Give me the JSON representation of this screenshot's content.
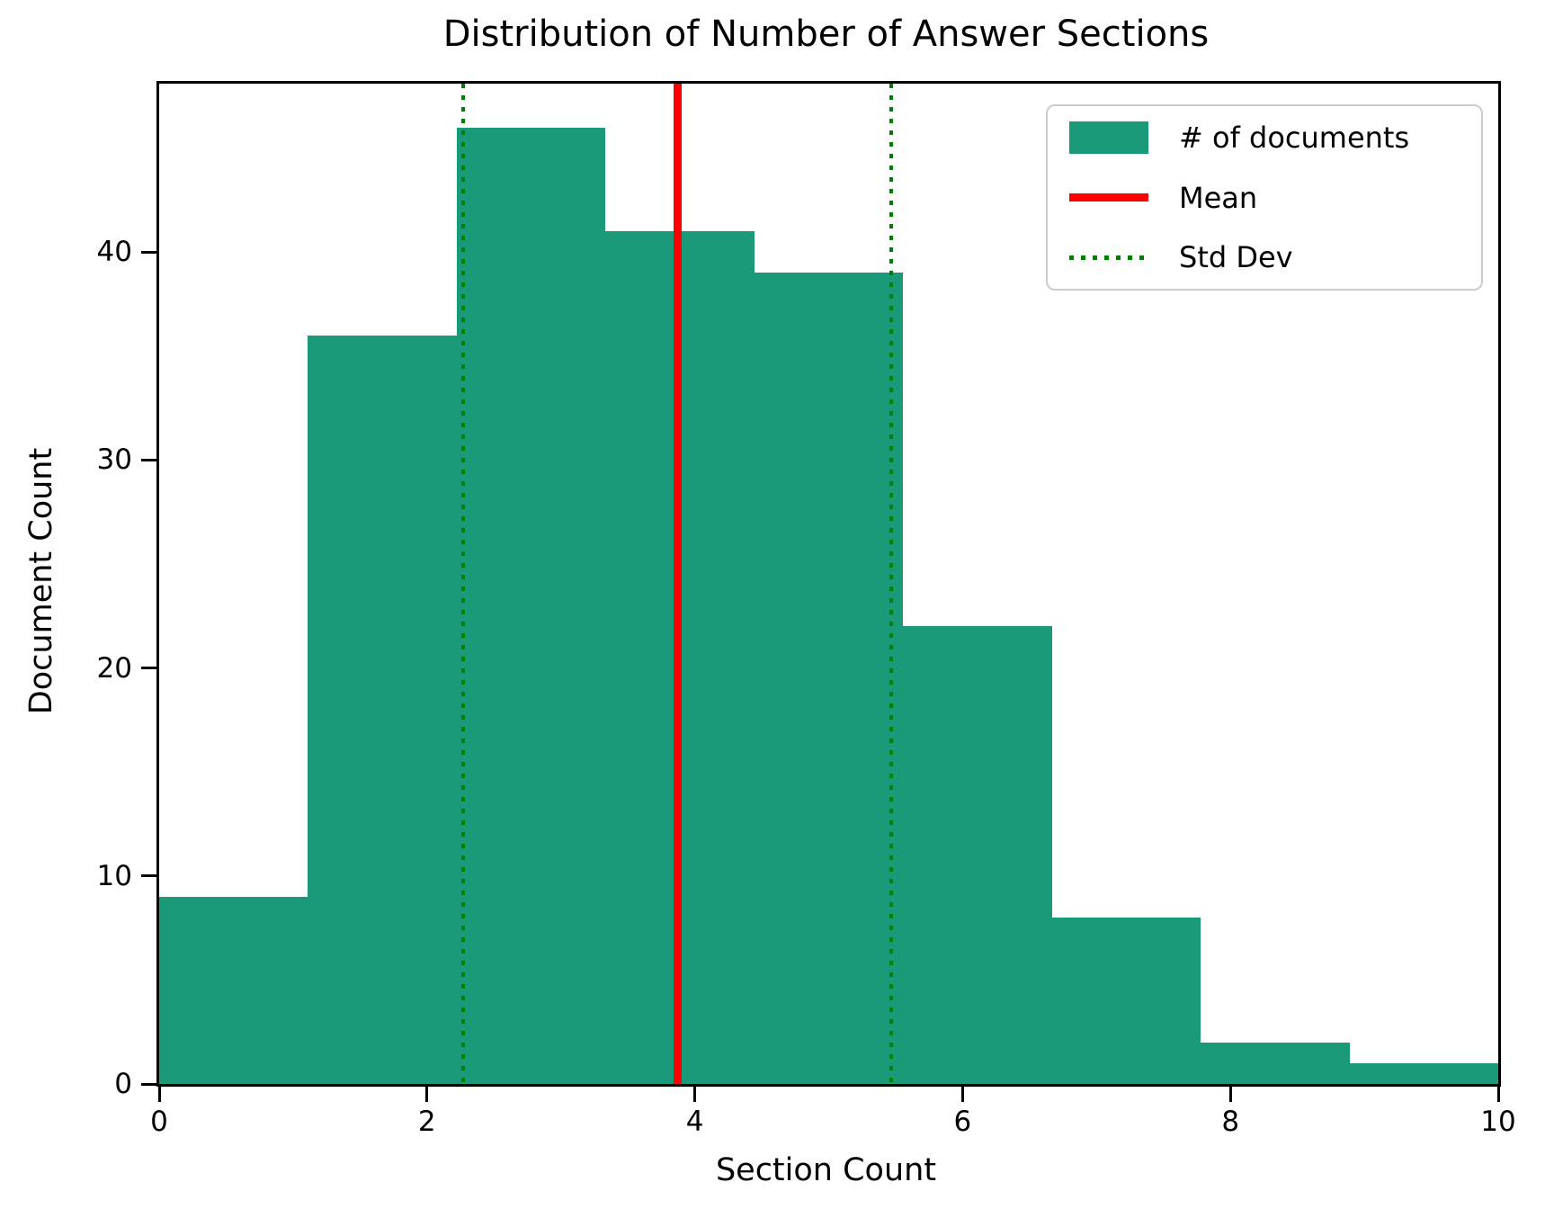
{
  "title": "Distribution of Number of Answer Sections",
  "xlabel": "Section Count",
  "ylabel": "Document Count",
  "legend": {
    "position": "upper right",
    "items": [
      {
        "label": "# of documents",
        "swatch": "patch",
        "color": "#1a9a78"
      },
      {
        "label": "Mean",
        "swatch": "line",
        "color": "#ff0000"
      },
      {
        "label": "Std Dev",
        "swatch": "dotted",
        "color": "#008000"
      }
    ]
  },
  "chart_data": {
    "type": "bar",
    "subtype": "histogram",
    "title": "Distribution of Number of Answer Sections",
    "xlabel": "Section Count",
    "ylabel": "Document Count",
    "bin_edges": [
      0,
      1.111,
      2.222,
      3.333,
      4.444,
      5.556,
      6.667,
      7.778,
      8.889,
      10
    ],
    "values": [
      9,
      36,
      46,
      41,
      39,
      22,
      8,
      2,
      1
    ],
    "mean": 3.87,
    "std_dev": 1.6,
    "std_lines": [
      2.27,
      5.47
    ],
    "xlim": [
      0,
      10
    ],
    "ylim": [
      0,
      48.1
    ],
    "xticks": [
      0,
      2,
      4,
      6,
      8,
      10
    ],
    "yticks": [
      0,
      10,
      20,
      30,
      40
    ],
    "grid": false,
    "legend_position": "upper right",
    "colors": {
      "bars": "#1a9a78",
      "mean_line": "#ff0000",
      "std_line": "#008000",
      "spines": "#000000",
      "background": "#ffffff"
    }
  }
}
